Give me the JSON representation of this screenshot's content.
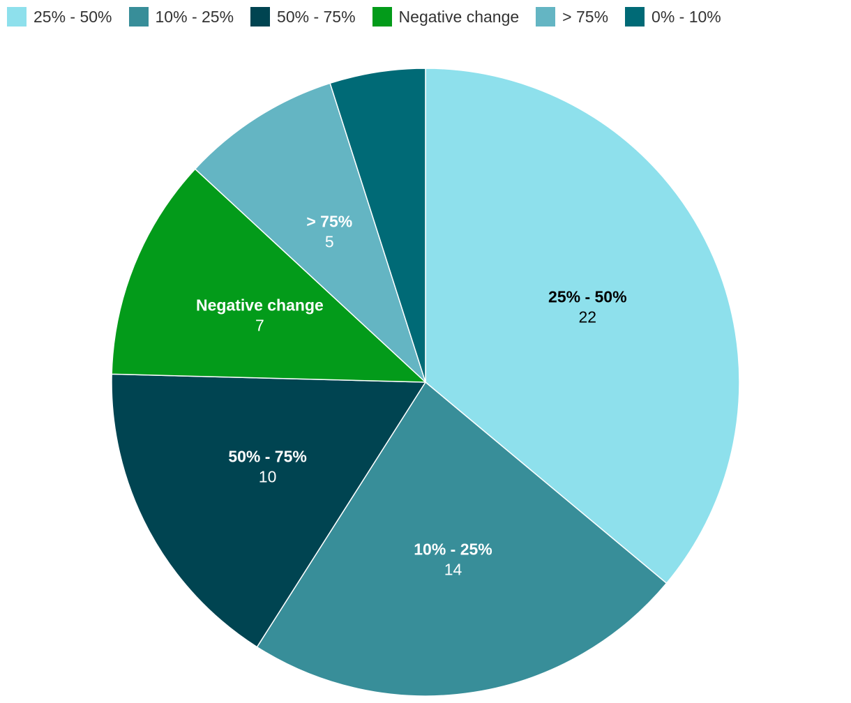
{
  "chart_data": {
    "type": "pie",
    "title": "",
    "legend_position": "top-left",
    "show_values": true,
    "slices": [
      {
        "label": "25% - 50%",
        "value": 22,
        "color": "#8ee0ec",
        "label_color": "#000000"
      },
      {
        "label": "10% - 25%",
        "value": 14,
        "color": "#388e99",
        "label_color": "#ffffff"
      },
      {
        "label": "50% - 75%",
        "value": 10,
        "color": "#004451",
        "label_color": "#ffffff"
      },
      {
        "label": "Negative change",
        "value": 7,
        "color": "#039b1a",
        "label_color": "#ffffff"
      },
      {
        "label": "> 75%",
        "value": 5,
        "color": "#64b5c3",
        "label_color": "#ffffff"
      },
      {
        "label": "0% - 10%",
        "value": 3,
        "color": "#006a76",
        "label_color": "#ffffff",
        "show_label": false
      }
    ]
  }
}
